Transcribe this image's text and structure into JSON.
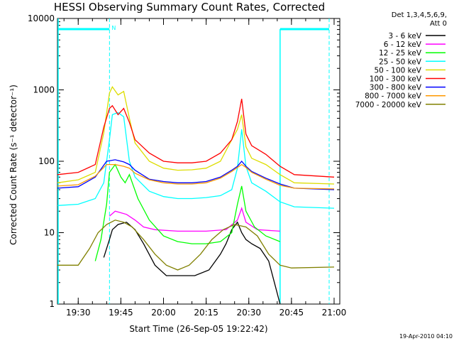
{
  "chart_data": {
    "type": "line",
    "title": "HESSI Observing Summary Count Rates, Corrected",
    "xlabel": "Start Time (26-Sep-05 19:22:42)",
    "ylabel": "Corrected Count Rate (s⁻¹ detector⁻¹)",
    "y_scale": "log",
    "ylim": [
      1,
      10000
    ],
    "xlim": [
      "19:22:42",
      "21:02:00"
    ],
    "x_ticks": [
      "19:30",
      "19:45",
      "20:00",
      "20:15",
      "20:30",
      "20:45",
      "21:00"
    ],
    "y_ticks": [
      "1",
      "10",
      "100",
      "1000",
      "10000"
    ],
    "legend_header": [
      "Det 1,3,4,5,6,9,",
      "Att 0"
    ],
    "legend_position": "right",
    "timestamp": "19-Apr-2010 04:10",
    "annotations": [
      {
        "text": "N",
        "x": "19:41:00",
        "color": "#00ffff"
      }
    ],
    "series": [
      {
        "name": "3 - 6 keV",
        "color": "#000000",
        "x": [
          "19:22:42",
          "19:37:00",
          "19:39:00",
          "19:41:00",
          "19:42:00",
          "19:44:00",
          "19:47:00",
          "19:50:00",
          "19:53:00",
          "19:57:00",
          "20:01:00",
          "20:06:00",
          "20:11:00",
          "20:16:00",
          "20:20:00",
          "20:22:00",
          "20:24:00",
          "20:26:00",
          "20:27:30",
          "20:29:00",
          "20:31:00",
          "20:34:00",
          "20:37:00",
          "20:39:00",
          "20:41:00"
        ],
        "values": [
          null,
          null,
          4.5,
          8,
          11,
          13,
          14,
          11,
          7,
          3.5,
          2.5,
          2.5,
          2.5,
          3,
          5,
          7,
          11,
          14,
          10,
          8,
          7,
          6,
          4,
          2,
          1
        ]
      },
      {
        "name": "6 - 12 keV",
        "color": "#ff00ff",
        "x": [
          "19:22:42",
          "19:37:00",
          "19:41:00",
          "19:43:00",
          "19:45:00",
          "19:47:00",
          "19:50:00",
          "19:53:00",
          "19:57:00",
          "20:05:00",
          "20:15:00",
          "20:22:00",
          "20:26:00",
          "20:27:30",
          "20:29:00",
          "20:33:00",
          "20:41:00",
          "20:43:00"
        ],
        "values": [
          null,
          null,
          17,
          20,
          19,
          18,
          15,
          12,
          11,
          10.5,
          10.5,
          11,
          15,
          22,
          14,
          11,
          10.5,
          null
        ]
      },
      {
        "name": "12 - 25 keV",
        "color": "#00ff00",
        "x": [
          "19:22:42",
          "19:34:00",
          "19:36:00",
          "19:38:00",
          "19:40:00",
          "19:41:00",
          "19:43:00",
          "19:45:00",
          "19:46:30",
          "19:48:00",
          "19:51:00",
          "19:55:00",
          "20:00:00",
          "20:05:00",
          "20:10:00",
          "20:15:00",
          "20:20:00",
          "20:24:00",
          "20:26:00",
          "20:27:30",
          "20:29:00",
          "20:32:00",
          "20:36:00",
          "20:41:00",
          "20:43:00"
        ],
        "values": [
          null,
          null,
          4,
          8,
          25,
          70,
          90,
          60,
          50,
          65,
          30,
          15,
          9,
          7.5,
          7,
          7,
          7.5,
          10,
          25,
          45,
          20,
          12,
          9,
          7.5,
          null
        ]
      },
      {
        "name": "25 - 50 keV",
        "color": "#00ffff",
        "x": [
          "19:22:42",
          "19:30:00",
          "19:36:00",
          "19:39:00",
          "19:41:00",
          "19:42:00",
          "19:44:00",
          "19:46:00",
          "19:48:00",
          "19:50:00",
          "19:55:00",
          "20:00:00",
          "20:05:00",
          "20:10:00",
          "20:15:00",
          "20:20:00",
          "20:24:00",
          "20:26:00",
          "20:27:30",
          "20:29:00",
          "20:31:00",
          "20:36:00",
          "20:41:00",
          "20:46:00",
          "21:00:00"
        ],
        "values": [
          24,
          25,
          30,
          50,
          200,
          450,
          480,
          420,
          100,
          60,
          38,
          32,
          30,
          30,
          31,
          33,
          40,
          80,
          280,
          85,
          50,
          38,
          27,
          23,
          22
        ]
      },
      {
        "name": "50 - 100 keV",
        "color": "#dddd00",
        "x": [
          "19:22:42",
          "19:30:00",
          "19:36:00",
          "19:39:00",
          "19:41:00",
          "19:42:00",
          "19:44:00",
          "19:46:00",
          "19:48:00",
          "19:50:00",
          "19:55:00",
          "20:00:00",
          "20:05:00",
          "20:10:00",
          "20:15:00",
          "20:20:00",
          "20:24:00",
          "20:26:00",
          "20:27:30",
          "20:29:00",
          "20:31:00",
          "20:36:00",
          "20:41:00",
          "20:46:00",
          "21:00:00"
        ],
        "values": [
          50,
          55,
          70,
          250,
          900,
          1100,
          850,
          950,
          400,
          180,
          100,
          80,
          75,
          76,
          80,
          100,
          200,
          280,
          450,
          160,
          110,
          90,
          65,
          50,
          48
        ]
      },
      {
        "name": "100 - 300 keV",
        "color": "#ff0000",
        "x": [
          "19:22:42",
          "19:30:00",
          "19:36:00",
          "19:39:00",
          "19:41:00",
          "19:42:00",
          "19:44:00",
          "19:46:00",
          "19:48:00",
          "19:50:00",
          "19:55:00",
          "20:00:00",
          "20:05:00",
          "20:10:00",
          "20:15:00",
          "20:20:00",
          "20:24:00",
          "20:26:00",
          "20:27:30",
          "20:29:00",
          "20:31:00",
          "20:36:00",
          "20:41:00",
          "20:46:00",
          "21:00:00"
        ],
        "values": [
          65,
          70,
          90,
          300,
          550,
          600,
          450,
          550,
          350,
          200,
          130,
          100,
          95,
          95,
          100,
          130,
          200,
          360,
          750,
          240,
          165,
          125,
          85,
          65,
          60
        ]
      },
      {
        "name": "300 - 800 keV",
        "color": "#0000ff",
        "x": [
          "19:22:42",
          "19:30:00",
          "19:36:00",
          "19:40:00",
          "19:43:00",
          "19:46:00",
          "19:48:00",
          "19:50:00",
          "19:55:00",
          "20:00:00",
          "20:05:00",
          "20:10:00",
          "20:15:00",
          "20:20:00",
          "20:24:00",
          "20:26:00",
          "20:27:30",
          "20:29:00",
          "20:31:00",
          "20:36:00",
          "20:41:00",
          "20:46:00",
          "21:00:00"
        ],
        "values": [
          42,
          44,
          60,
          100,
          105,
          98,
          90,
          75,
          56,
          52,
          50,
          50,
          52,
          60,
          75,
          85,
          100,
          85,
          72,
          58,
          48,
          42,
          40
        ]
      },
      {
        "name": "800 - 7000 keV",
        "color": "#ff9900",
        "x": [
          "19:22:42",
          "19:30:00",
          "19:36:00",
          "19:40:00",
          "19:43:00",
          "19:46:00",
          "19:48:00",
          "19:50:00",
          "19:55:00",
          "20:00:00",
          "20:05:00",
          "20:10:00",
          "20:15:00",
          "20:20:00",
          "20:24:00",
          "20:26:00",
          "20:27:30",
          "20:29:00",
          "20:31:00",
          "20:36:00",
          "20:41:00",
          "20:46:00",
          "21:00:00"
        ],
        "values": [
          45,
          47,
          62,
          90,
          90,
          85,
          80,
          68,
          55,
          50,
          48,
          48,
          50,
          58,
          72,
          82,
          90,
          82,
          70,
          56,
          46,
          42,
          41
        ]
      },
      {
        "name": "7000 - 20000 keV",
        "color": "#808000",
        "x": [
          "19:22:42",
          "19:30:00",
          "19:34:00",
          "19:37:00",
          "19:40:00",
          "19:43:00",
          "19:46:00",
          "19:49:00",
          "19:53:00",
          "19:57:00",
          "20:01:00",
          "20:05:00",
          "20:09:00",
          "20:13:00",
          "20:17:00",
          "20:21:00",
          "20:25:00",
          "20:29:00",
          "20:33:00",
          "20:37:00",
          "20:41:00",
          "20:45:00",
          "21:00:00"
        ],
        "values": [
          3.5,
          3.5,
          6,
          10,
          13,
          15,
          14,
          12,
          8,
          5,
          3.5,
          3,
          3.5,
          5,
          8,
          11,
          13,
          12,
          9,
          5,
          3.5,
          3.2,
          3.3
        ]
      }
    ]
  }
}
